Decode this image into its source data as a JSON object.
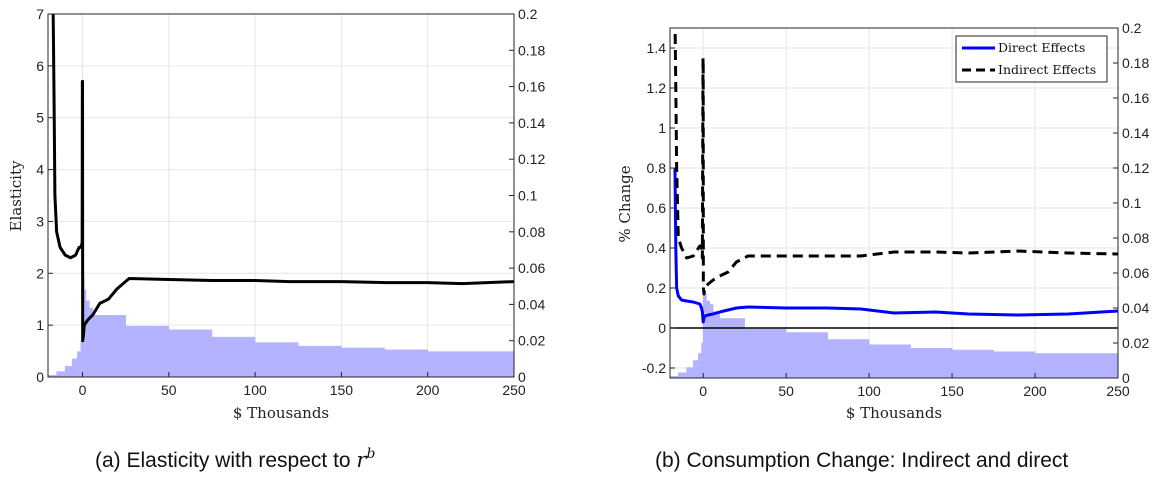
{
  "chart_data": [
    {
      "type": "line",
      "caption_prefix": "(a)  Elasticity with respect to ",
      "caption_math": "r",
      "caption_sup": "b",
      "xlabel": "$ Thousands",
      "ylabel": "Elasticity",
      "xlim": [
        -20,
        250
      ],
      "ylim": [
        0,
        7
      ],
      "y2lim": [
        0,
        0.2
      ],
      "grid": true,
      "x_ticks": [
        0,
        50,
        100,
        150,
        200,
        250
      ],
      "y_ticks": [
        0,
        1,
        2,
        3,
        4,
        5,
        6,
        7
      ],
      "y2_ticks": [
        0,
        0.02,
        0.04,
        0.06,
        0.08,
        0.1,
        0.12,
        0.14,
        0.16,
        0.18,
        0.2
      ],
      "series": [
        {
          "color": "#000000",
          "style": "solid",
          "x": [
            -17,
            -16.5,
            -16,
            -15,
            -13,
            -10,
            -7,
            -4,
            -2,
            -1,
            -0.5,
            -0.2,
            -0.1,
            0,
            0.1,
            0.5,
            1,
            3,
            6,
            10,
            15,
            20,
            27,
            50,
            75,
            100,
            120,
            150,
            175,
            200,
            220,
            250
          ],
          "y": [
            7.0,
            5.4,
            3.5,
            2.8,
            2.5,
            2.35,
            2.3,
            2.35,
            2.5,
            2.5,
            2.55,
            2.6,
            5.7,
            5.7,
            0.7,
            0.8,
            1.0,
            1.1,
            1.2,
            1.42,
            1.5,
            1.7,
            1.9,
            1.88,
            1.86,
            1.86,
            1.84,
            1.84,
            1.82,
            1.82,
            1.8,
            1.84
          ]
        }
      ],
      "histogram": {
        "axis": "right",
        "color": "#b3b3ff",
        "edges": [
          -20,
          -15,
          -10,
          -6,
          -3,
          -1,
          0,
          1,
          2,
          4,
          6,
          10,
          25,
          50,
          75,
          100,
          125,
          150,
          175,
          200,
          250
        ],
        "values": [
          0.001,
          0.003,
          0.006,
          0.01,
          0.014,
          0.02,
          0.055,
          0.048,
          0.042,
          0.038,
          0.034,
          0.034,
          0.028,
          0.026,
          0.022,
          0.019,
          0.017,
          0.016,
          0.015,
          0.014,
          0.013
        ]
      }
    },
    {
      "type": "line",
      "caption": "(b)  Consumption Change: Indirect and direct",
      "xlabel": "$ Thousands",
      "ylabel": "% Change",
      "xlim": [
        -20,
        250
      ],
      "ylim": [
        -0.25,
        1.5
      ],
      "y2lim": [
        0,
        0.2
      ],
      "grid": true,
      "zero_line": true,
      "x_ticks": [
        0,
        50,
        100,
        150,
        200,
        250
      ],
      "y_ticks": [
        -0.2,
        0,
        0.2,
        0.4,
        0.6,
        0.8,
        1,
        1.2,
        1.4
      ],
      "y2_ticks": [
        0,
        0.02,
        0.04,
        0.06,
        0.08,
        0.1,
        0.12,
        0.14,
        0.16,
        0.18,
        0.2
      ],
      "legend_position": "top-right",
      "series": [
        {
          "name": "Direct Effects",
          "color": "#0000ff",
          "style": "solid",
          "x": [
            -17,
            -16.5,
            -16,
            -15,
            -13,
            -10,
            -6,
            -2,
            -1,
            -0.5,
            0,
            0.5,
            1,
            3,
            6,
            10,
            15,
            20,
            27,
            50,
            75,
            95,
            115,
            140,
            160,
            190,
            220,
            250
          ],
          "y": [
            0.8,
            0.4,
            0.2,
            0.16,
            0.14,
            0.135,
            0.13,
            0.12,
            0.1,
            0.08,
            0.03,
            0.05,
            0.06,
            0.065,
            0.07,
            0.08,
            0.09,
            0.1,
            0.105,
            0.1,
            0.1,
            0.095,
            0.075,
            0.08,
            0.07,
            0.065,
            0.07,
            0.085
          ]
        },
        {
          "name": "Indirect Effects",
          "color": "#000000",
          "style": "dashed",
          "x": [
            -17,
            -16.5,
            -16,
            -15,
            -13,
            -10,
            -6,
            -2,
            -1,
            -0.5,
            -0.1,
            0,
            0.1,
            0.5,
            1,
            3,
            6,
            10,
            15,
            20,
            27,
            50,
            75,
            95,
            115,
            140,
            160,
            190,
            220,
            250
          ],
          "y": [
            1.55,
            1.2,
            0.8,
            0.45,
            0.4,
            0.35,
            0.36,
            0.41,
            0.41,
            0.35,
            1.35,
            1.35,
            0.2,
            0.17,
            0.2,
            0.22,
            0.24,
            0.26,
            0.28,
            0.33,
            0.36,
            0.36,
            0.36,
            0.36,
            0.38,
            0.38,
            0.375,
            0.385,
            0.375,
            0.37
          ]
        }
      ],
      "histogram": {
        "axis": "right",
        "color": "#b3b3ff",
        "edges": [
          -20,
          -15,
          -10,
          -6,
          -3,
          -1,
          0,
          1,
          2,
          4,
          6,
          10,
          25,
          50,
          75,
          100,
          125,
          150,
          175,
          200,
          250
        ],
        "values": [
          0.001,
          0.003,
          0.006,
          0.01,
          0.014,
          0.02,
          0.05,
          0.048,
          0.044,
          0.042,
          0.038,
          0.034,
          0.028,
          0.026,
          0.022,
          0.019,
          0.017,
          0.016,
          0.015,
          0.014,
          0.013
        ]
      }
    }
  ]
}
